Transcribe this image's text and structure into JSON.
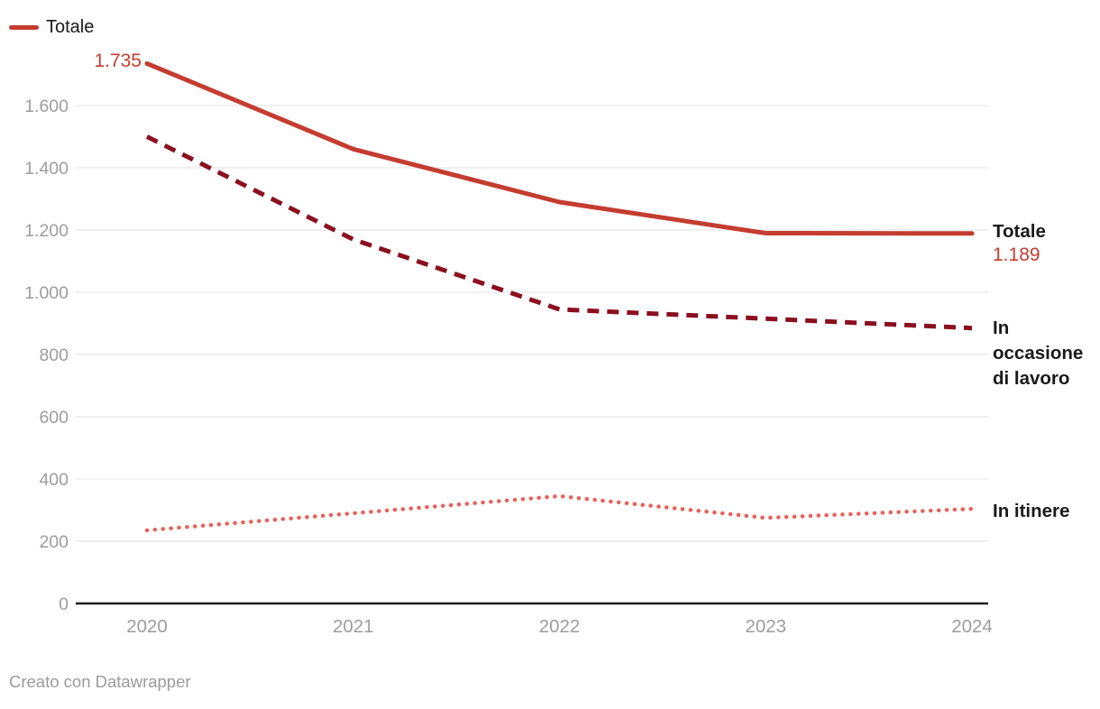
{
  "legend": {
    "label": "Totale"
  },
  "annotations": {
    "start_value": "1.735",
    "totale_title": "Totale",
    "totale_value": "1.189",
    "occasione_label": "In occasione di lavoro",
    "itinere_label": "In itinere"
  },
  "footer": {
    "attribution": "Creato con Datawrapper"
  },
  "colors": {
    "totale": "#c43d30",
    "occasione": "#8b0f1f",
    "itinere": "#e8625a",
    "grid": "#e6e6e6",
    "axis": "#1a1a1a",
    "tick_text": "#9d9d9d",
    "label_text": "#1a1a1a",
    "value_text": "#c43d30"
  },
  "chart_data": {
    "type": "line",
    "title": "",
    "xlabel": "",
    "ylabel": "",
    "categories": [
      "2020",
      "2021",
      "2022",
      "2023",
      "2024"
    ],
    "series": [
      {
        "name": "Totale",
        "values": [
          1735,
          1460,
          1290,
          1190,
          1189
        ],
        "style": "solid",
        "color": "#c43d30"
      },
      {
        "name": "In occasione di lavoro",
        "values": [
          1500,
          1170,
          945,
          915,
          885
        ],
        "style": "dashed",
        "color": "#8b0f1f"
      },
      {
        "name": "In itinere",
        "values": [
          235,
          290,
          345,
          275,
          304
        ],
        "style": "dotted",
        "color": "#e8625a"
      }
    ],
    "y_ticks": [
      0,
      200,
      400,
      600,
      800,
      1000,
      1200,
      1400,
      1600
    ],
    "y_tick_labels": [
      "0",
      "200",
      "400",
      "600",
      "800",
      "1.000",
      "1.200",
      "1.400",
      "1.600"
    ],
    "ylim": [
      0,
      1735
    ],
    "grid": true,
    "legend_position": "top-left"
  }
}
